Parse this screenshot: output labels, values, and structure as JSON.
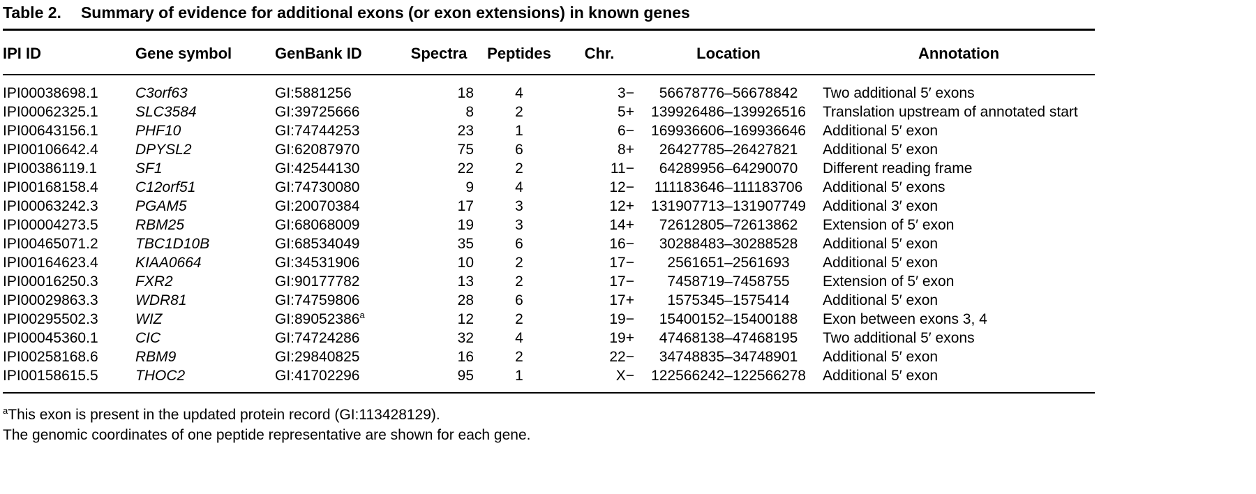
{
  "page": {
    "background_color": "#ffffff",
    "text_color": "#000000"
  },
  "table": {
    "label": "Table 2.",
    "title": "Summary of evidence for additional exons (or exon extensions) in known genes",
    "columns": [
      "IPI ID",
      "Gene symbol",
      "GenBank ID",
      "Spectra",
      "Peptides",
      "Chr.",
      "Location",
      "Annotation"
    ],
    "rows": [
      {
        "ipi_id": "IPI00038698.1",
        "gene_symbol": "C3orf63",
        "genbank_id": "GI:5881256",
        "spectra": "18",
        "peptides": "4",
        "chr": "3−",
        "location": "56678776–56678842",
        "annotation": "Two additional 5′ exons"
      },
      {
        "ipi_id": "IPI00062325.1",
        "gene_symbol": "SLC3584",
        "genbank_id": "GI:39725666",
        "spectra": "8",
        "peptides": "2",
        "chr": "5+",
        "location": "139926486–139926516",
        "annotation": "Translation upstream of annotated start"
      },
      {
        "ipi_id": "IPI00643156.1",
        "gene_symbol": "PHF10",
        "genbank_id": "GI:74744253",
        "spectra": "23",
        "peptides": "1",
        "chr": "6−",
        "location": "169936606–169936646",
        "annotation": "Additional 5′ exon"
      },
      {
        "ipi_id": "IPI00106642.4",
        "gene_symbol": "DPYSL2",
        "genbank_id": "GI:62087970",
        "spectra": "75",
        "peptides": "6",
        "chr": "8+",
        "location": "26427785–26427821",
        "annotation": "Additional 5′ exon"
      },
      {
        "ipi_id": "IPI00386119.1",
        "gene_symbol": "SF1",
        "genbank_id": "GI:42544130",
        "spectra": "22",
        "peptides": "2",
        "chr": "11−",
        "location": "64289956–64290070",
        "annotation": "Different reading frame"
      },
      {
        "ipi_id": "IPI00168158.4",
        "gene_symbol": "C12orf51",
        "genbank_id": "GI:74730080",
        "spectra": "9",
        "peptides": "4",
        "chr": "12−",
        "location": "111183646–111183706",
        "annotation": "Additional 5′ exons"
      },
      {
        "ipi_id": "IPI00063242.3",
        "gene_symbol": "PGAM5",
        "genbank_id": "GI:20070384",
        "spectra": "17",
        "peptides": "3",
        "chr": "12+",
        "location": "131907713–131907749",
        "annotation": "Additional 3′ exon"
      },
      {
        "ipi_id": "IPI00004273.5",
        "gene_symbol": "RBM25",
        "genbank_id": "GI:68068009",
        "spectra": "19",
        "peptides": "3",
        "chr": "14+",
        "location": "72612805–72613862",
        "annotation": "Extension of 5′ exon"
      },
      {
        "ipi_id": "IPI00465071.2",
        "gene_symbol": "TBC1D10B",
        "genbank_id": "GI:68534049",
        "spectra": "35",
        "peptides": "6",
        "chr": "16−",
        "location": "30288483–30288528",
        "annotation": "Additional 5′ exon"
      },
      {
        "ipi_id": "IPI00164623.4",
        "gene_symbol": "KIAA0664",
        "genbank_id": "GI:34531906",
        "spectra": "10",
        "peptides": "2",
        "chr": "17−",
        "location": "2561651–2561693",
        "annotation": "Additional 5′ exon"
      },
      {
        "ipi_id": "IPI00016250.3",
        "gene_symbol": "FXR2",
        "genbank_id": "GI:90177782",
        "spectra": "13",
        "peptides": "2",
        "chr": "17−",
        "location": "7458719–7458755",
        "annotation": "Extension of 5′ exon"
      },
      {
        "ipi_id": "IPI00029863.3",
        "gene_symbol": "WDR81",
        "genbank_id": "GI:74759806",
        "spectra": "28",
        "peptides": "6",
        "chr": "17+",
        "location": "1575345–1575414",
        "annotation": "Additional 5′ exon"
      },
      {
        "ipi_id": "IPI00295502.3",
        "gene_symbol": "WIZ",
        "genbank_id": "GI:89052386",
        "genbank_sup": "a",
        "spectra": "12",
        "peptides": "2",
        "chr": "19−",
        "location": "15400152–15400188",
        "annotation": "Exon between exons 3, 4"
      },
      {
        "ipi_id": "IPI00045360.1",
        "gene_symbol": "CIC",
        "genbank_id": "GI:74724286",
        "spectra": "32",
        "peptides": "4",
        "chr": "19+",
        "location": "47468138–47468195",
        "annotation": "Two additional 5′ exons"
      },
      {
        "ipi_id": "IPI00258168.6",
        "gene_symbol": "RBM9",
        "genbank_id": "GI:29840825",
        "spectra": "16",
        "peptides": "2",
        "chr": "22−",
        "location": "34748835–34748901",
        "annotation": "Additional 5′ exon"
      },
      {
        "ipi_id": "IPI00158615.5",
        "gene_symbol": "THOC2",
        "genbank_id": "GI:41702296",
        "spectra": "95",
        "peptides": "1",
        "chr": "X−",
        "location": "122566242–122566278",
        "annotation": "Additional 5′ exon"
      }
    ],
    "footnotes": [
      {
        "sup": "a",
        "text": "This exon is present in the updated protein record (GI:113428129)."
      },
      {
        "sup": "",
        "text": "The genomic coordinates of one peptide representative are shown for each gene."
      }
    ]
  }
}
